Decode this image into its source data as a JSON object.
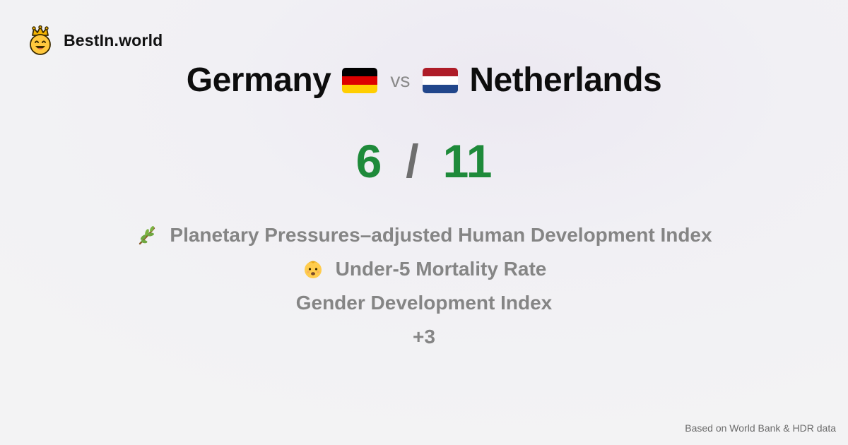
{
  "brand": {
    "name": "BestIn.world",
    "icon": "crown-smiley-icon"
  },
  "comparison": {
    "left": {
      "name": "Germany",
      "flag": "germany-flag-icon",
      "flag_colors": [
        "#000000",
        "#DD0000",
        "#FFCE00"
      ],
      "score": "6"
    },
    "separator": "vs",
    "right": {
      "name": "Netherlands",
      "flag": "netherlands-flag-icon",
      "flag_colors": [
        "#AE1C28",
        "#FFFFFF",
        "#21468B"
      ],
      "score": "11"
    },
    "score_separator": "/"
  },
  "metrics": [
    {
      "icon": "olive-branch-icon",
      "label": "Planetary Pressures–adjusted Human Development Index"
    },
    {
      "icon": "baby-icon",
      "label": "Under-5 Mortality Rate"
    },
    {
      "icon": "",
      "label": "Gender Development Index"
    }
  ],
  "more_count": "+3",
  "footer": {
    "source": "Based on World Bank & HDR data"
  },
  "colors": {
    "score_green": "#1e8a3a",
    "metric_gray": "#858585"
  }
}
